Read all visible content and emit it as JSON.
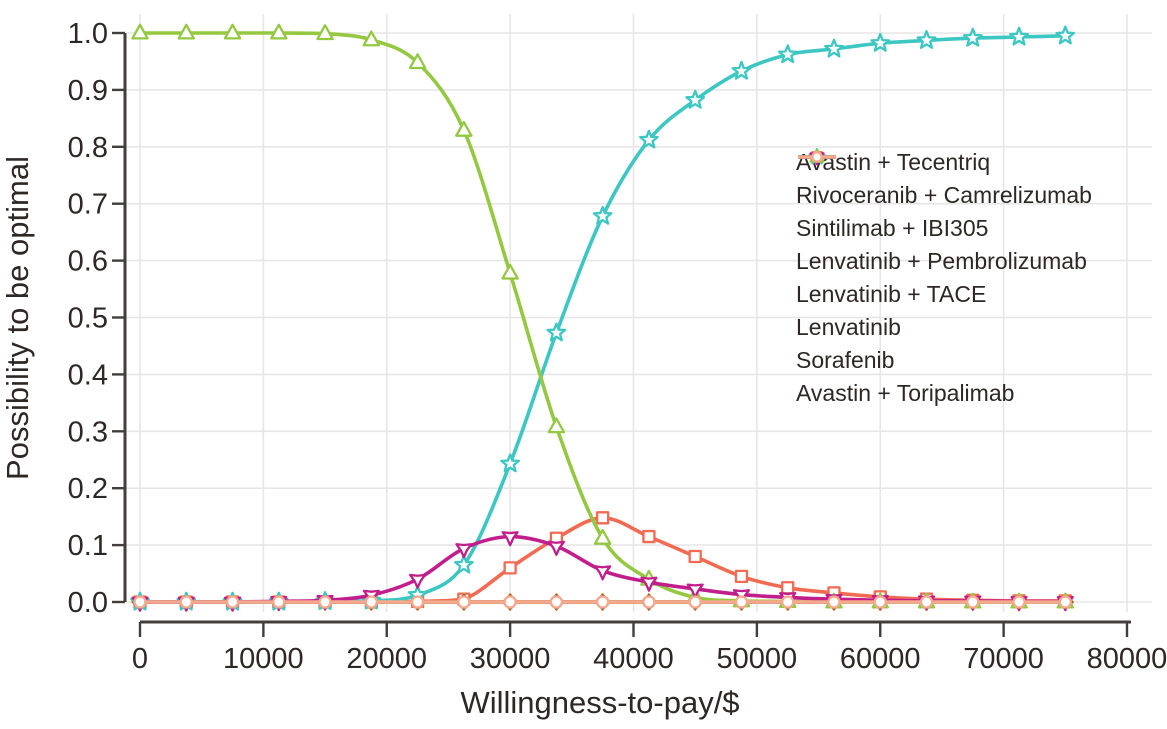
{
  "style": {
    "background": "#ffffff",
    "text_color": "#2e2724",
    "axis_color": "#433d3b",
    "grid_color": "#e6e6e6"
  },
  "chart_data": {
    "type": "line",
    "title": "",
    "xlabel": "Willingness-to-pay/$",
    "ylabel": "Possibility to be optimal",
    "xlim": [
      0,
      80000
    ],
    "ylim": [
      0.0,
      1.0
    ],
    "grid": true,
    "legend_position": "right-center-inside",
    "x_ticks": [
      0,
      10000,
      20000,
      30000,
      40000,
      50000,
      60000,
      70000,
      80000
    ],
    "x_tick_labels": [
      "0",
      "10000",
      "20000",
      "30000",
      "40000",
      "50000",
      "60000",
      "70000",
      "80000"
    ],
    "y_ticks": [
      0.0,
      0.1,
      0.2,
      0.3,
      0.4,
      0.5,
      0.6,
      0.7,
      0.8,
      0.9,
      1.0
    ],
    "y_tick_labels": [
      "0.0",
      "0.1",
      "0.2",
      "0.3",
      "0.4",
      "0.5",
      "0.6",
      "0.7",
      "0.8",
      "0.9",
      "1.0"
    ],
    "x": [
      0,
      3750,
      7500,
      11250,
      15000,
      18750,
      22500,
      26250,
      30000,
      33750,
      37500,
      41250,
      45000,
      48750,
      52500,
      56250,
      60000,
      63750,
      67500,
      71250,
      75000
    ],
    "series": [
      {
        "name": "Avastin + Tecentriq",
        "color": "#4A90E2",
        "marker": "circle",
        "values": [
          0,
          0,
          0,
          0,
          0,
          0,
          0,
          0,
          0,
          0,
          0,
          0,
          0,
          0,
          0,
          0,
          0,
          0,
          0,
          0,
          0
        ]
      },
      {
        "name": "Rivoceranib + Camrelizumab",
        "color": "#F26A52",
        "marker": "square",
        "values": [
          0,
          0,
          0,
          0,
          0,
          0,
          0.001,
          0.005,
          0.06,
          0.112,
          0.148,
          0.115,
          0.08,
          0.045,
          0.025,
          0.016,
          0.009,
          0.005,
          0.003,
          0.002,
          0.002
        ]
      },
      {
        "name": "Sintilimab + IBI305",
        "color": "#DCA62F",
        "marker": "star4",
        "values": [
          0,
          0,
          0,
          0,
          0,
          0,
          0,
          0,
          0,
          0,
          0,
          0,
          0,
          0,
          0,
          0,
          0,
          0,
          0,
          0,
          0
        ]
      },
      {
        "name": "Lenvatinib + Pembrolizumab",
        "color": "#9E5B40",
        "marker": "diamond",
        "values": [
          0,
          0,
          0,
          0,
          0,
          0,
          0,
          0,
          0,
          0,
          0,
          0,
          0,
          0,
          0,
          0,
          0,
          0,
          0,
          0,
          0
        ]
      },
      {
        "name": "Lenvatinib + TACE",
        "color": "#3CC7C2",
        "marker": "star5",
        "values": [
          0,
          0,
          0,
          0,
          0.001,
          0.002,
          0.012,
          0.065,
          0.243,
          0.473,
          0.678,
          0.812,
          0.882,
          0.933,
          0.962,
          0.972,
          0.982,
          0.987,
          0.991,
          0.993,
          0.995
        ]
      },
      {
        "name": "Lenvatinib",
        "color": "#93C840",
        "marker": "triangle",
        "values": [
          1,
          1,
          1,
          1,
          0.999,
          0.988,
          0.948,
          0.829,
          0.578,
          0.308,
          0.112,
          0.04,
          0.008,
          0.002,
          0.001,
          0,
          0,
          0,
          0,
          0,
          0
        ]
      },
      {
        "name": "Sorafenib",
        "color": "#C11E8C",
        "marker": "star3",
        "values": [
          0,
          0,
          0,
          0.001,
          0.003,
          0.012,
          0.04,
          0.094,
          0.115,
          0.098,
          0.055,
          0.035,
          0.023,
          0.013,
          0.008,
          0.005,
          0.003,
          0.002,
          0.002,
          0.001,
          0.001
        ]
      },
      {
        "name": "Avastin + Toripalimab",
        "color": "#F6A98C",
        "marker": "circle",
        "values": [
          0,
          0,
          0,
          0,
          0,
          0,
          0,
          0,
          0,
          0,
          0,
          0,
          0,
          0,
          0,
          0,
          0,
          0,
          0,
          0,
          0
        ]
      }
    ]
  }
}
